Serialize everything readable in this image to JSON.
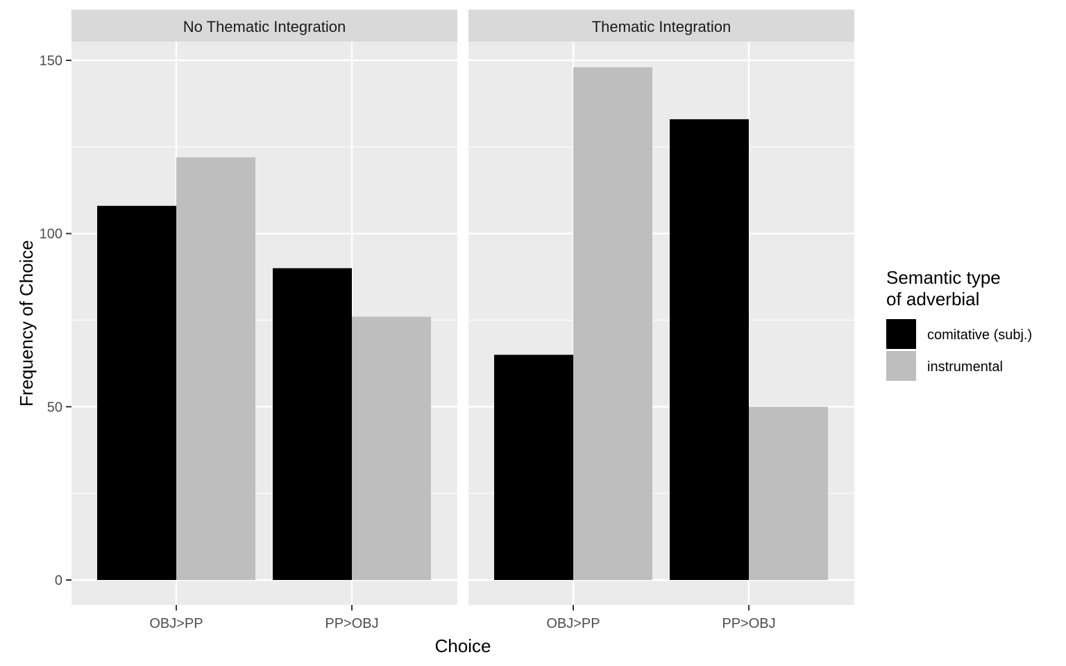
{
  "chart_data": {
    "type": "bar",
    "xlabel": "Choice",
    "ylabel": "Frequency of Choice",
    "ylim": [
      0,
      150
    ],
    "y_ticks": [
      0,
      50,
      100,
      150
    ],
    "grid": true,
    "legend": {
      "title_lines": [
        "Semantic type",
        "of adverbial"
      ],
      "placement": "right"
    },
    "categories": [
      "OBJ>PP",
      "PP>OBJ"
    ],
    "series_meta": [
      {
        "name": "comitative (subj.)",
        "color": "#000000"
      },
      {
        "name": "instrumental",
        "color": "#bebebe"
      }
    ],
    "panels": [
      {
        "label": "No Thematic Integration",
        "series": [
          {
            "name": "comitative (subj.)",
            "values": [
              108,
              90
            ]
          },
          {
            "name": "instrumental",
            "values": [
              122,
              76
            ]
          }
        ]
      },
      {
        "label": "Thematic Integration",
        "series": [
          {
            "name": "comitative (subj.)",
            "values": [
              65,
              133
            ]
          },
          {
            "name": "instrumental",
            "values": [
              148,
              50
            ]
          }
        ]
      }
    ]
  },
  "colors": {
    "panel_bg": "#ebebeb",
    "strip_bg": "#d9d9d9",
    "grid": "#ffffff",
    "tick": "#333333"
  }
}
